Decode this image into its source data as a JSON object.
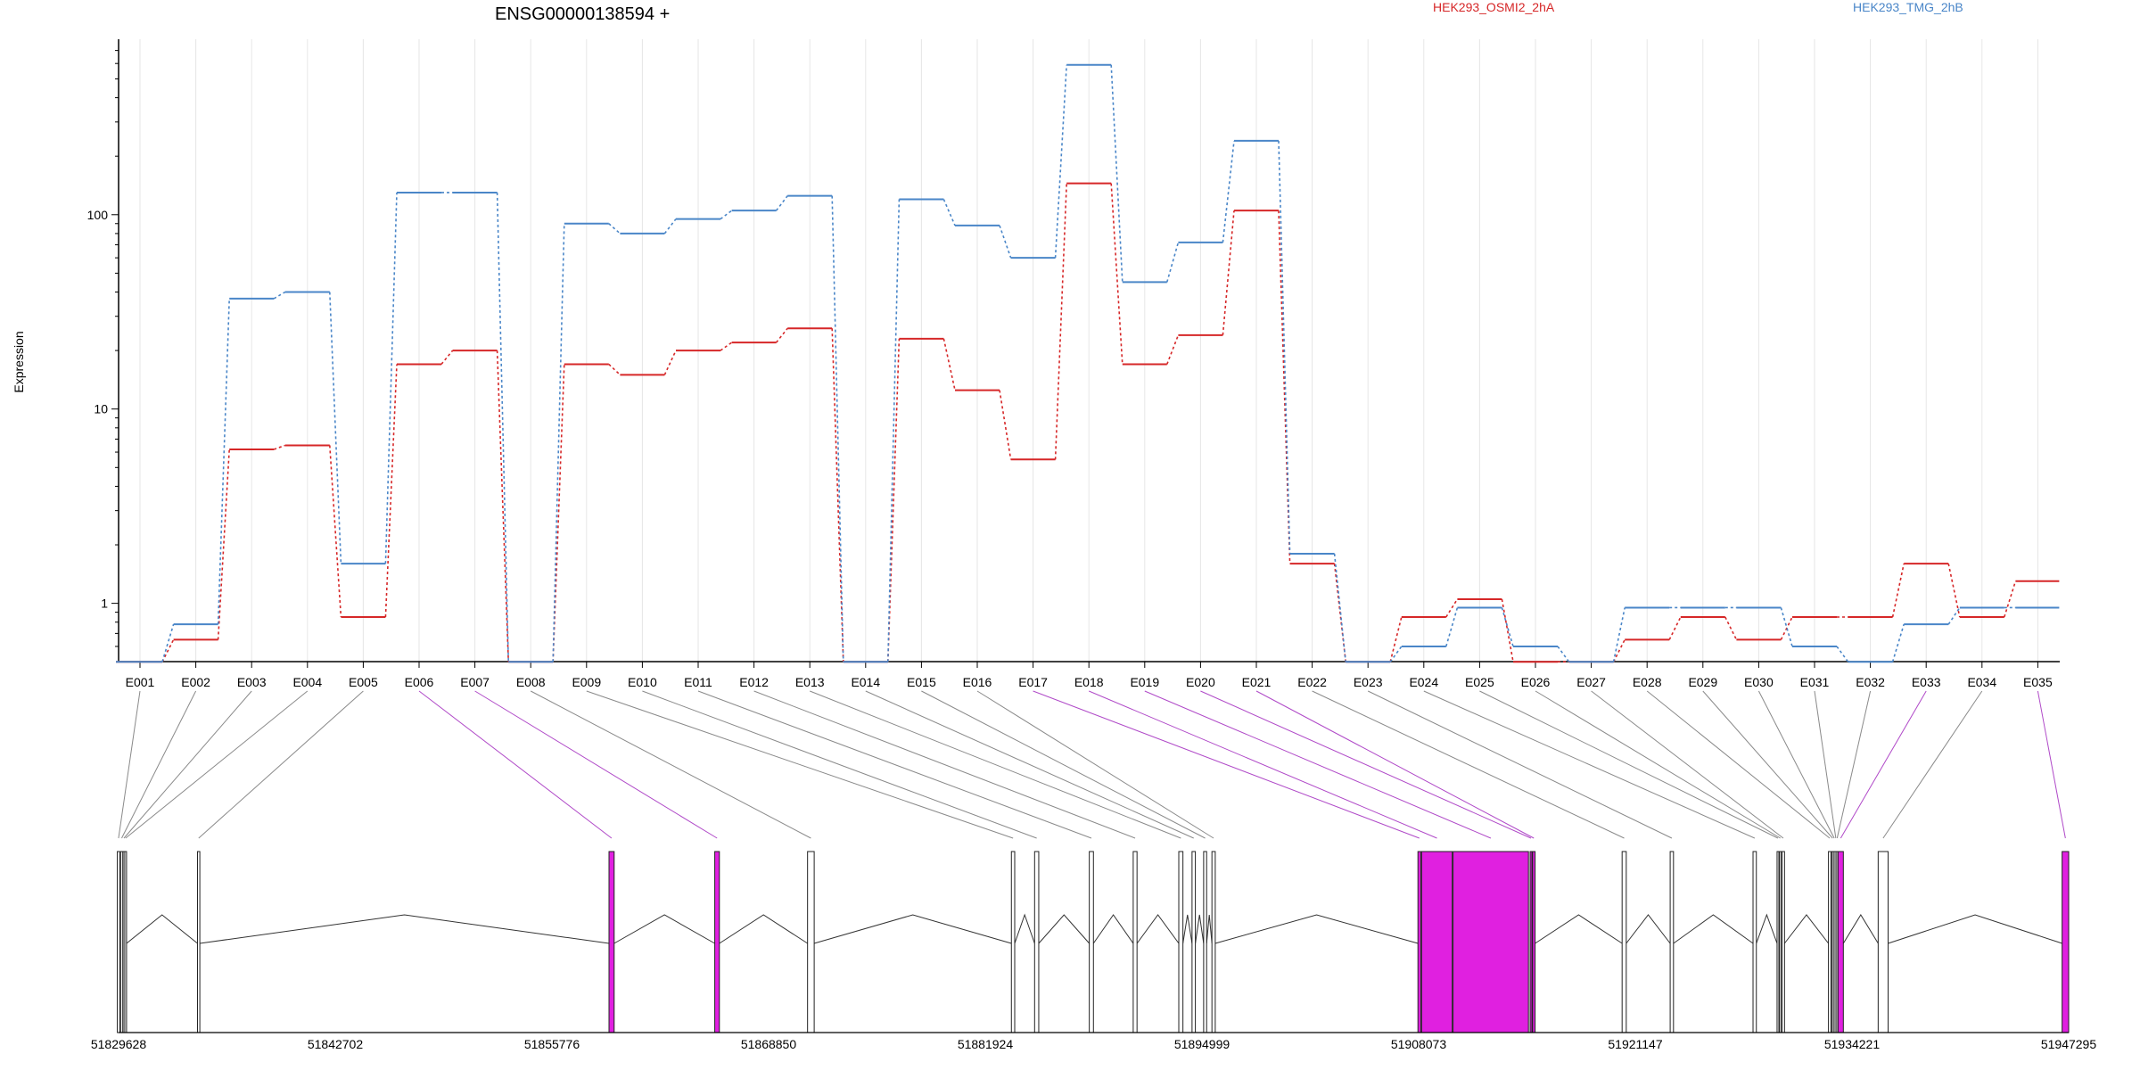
{
  "chart_data": {
    "type": "line",
    "title": "ENSG00000138594 +",
    "ylabel": "Expression",
    "xlabel": "",
    "yscale": "log",
    "ylim": [
      0.48,
      800
    ],
    "yticks": [
      1,
      10,
      100
    ],
    "ytick_labels": [
      "1",
      "10",
      "100"
    ],
    "grid": "vertical exon lines",
    "legend": "top-right",
    "categories": [
      "E001",
      "E002",
      "E003",
      "E004",
      "E005",
      "E006",
      "E007",
      "E008",
      "E009",
      "E010",
      "E011",
      "E012",
      "E013",
      "E014",
      "E015",
      "E016",
      "E017",
      "E018",
      "E019",
      "E020",
      "E021",
      "E022",
      "E023",
      "E024",
      "E025",
      "E026",
      "E027",
      "E028",
      "E029",
      "E030",
      "E031",
      "E032",
      "E033",
      "E034",
      "E035"
    ],
    "series": [
      {
        "name": "HEK293_OSMI2_2hA",
        "color": "#d62728",
        "values": [
          0.5,
          0.65,
          6.2,
          6.5,
          0.85,
          17,
          20,
          0.5,
          17,
          15,
          20,
          22,
          26,
          0.5,
          23,
          12.5,
          5.5,
          145,
          17,
          24,
          105,
          1.6,
          0.5,
          0.85,
          1.05,
          0.5,
          0.5,
          0.65,
          0.85,
          0.65,
          0.85,
          0.85,
          1.6,
          0.85,
          1.3
        ]
      },
      {
        "name": "HEK293_TMG_2hB",
        "color": "#4a86c8",
        "values": [
          0.5,
          0.78,
          37,
          40,
          1.6,
          130,
          130,
          0.5,
          90,
          80,
          95,
          105,
          125,
          0.5,
          120,
          88,
          60,
          590,
          45,
          72,
          240,
          1.8,
          0.5,
          0.6,
          0.95,
          0.6,
          0.5,
          0.95,
          0.95,
          0.95,
          0.6,
          0.5,
          0.78,
          0.95,
          0.95
        ]
      }
    ],
    "gene_model": {
      "coordinate_labels": [
        "51829628",
        "51842702",
        "51855776",
        "51868850",
        "51881924",
        "51894999",
        "51908073",
        "51921147",
        "51934221",
        "51947295"
      ],
      "exon_highlight": [
        false,
        false,
        false,
        false,
        false,
        true,
        true,
        false,
        false,
        false,
        false,
        false,
        false,
        false,
        false,
        false,
        true,
        true,
        true,
        true,
        true,
        false,
        false,
        false,
        false,
        false,
        false,
        false,
        false,
        false,
        false,
        false,
        true,
        false,
        true
      ]
    }
  },
  "colors": {
    "osmi": "#d62728",
    "tmg": "#4a86c8",
    "highlight": "#e020e0",
    "highlight_line": "#b04ac8",
    "exon_grey": "#c8c8c8",
    "grid": "#e6e6e6",
    "connector": "#8a8a8a"
  }
}
